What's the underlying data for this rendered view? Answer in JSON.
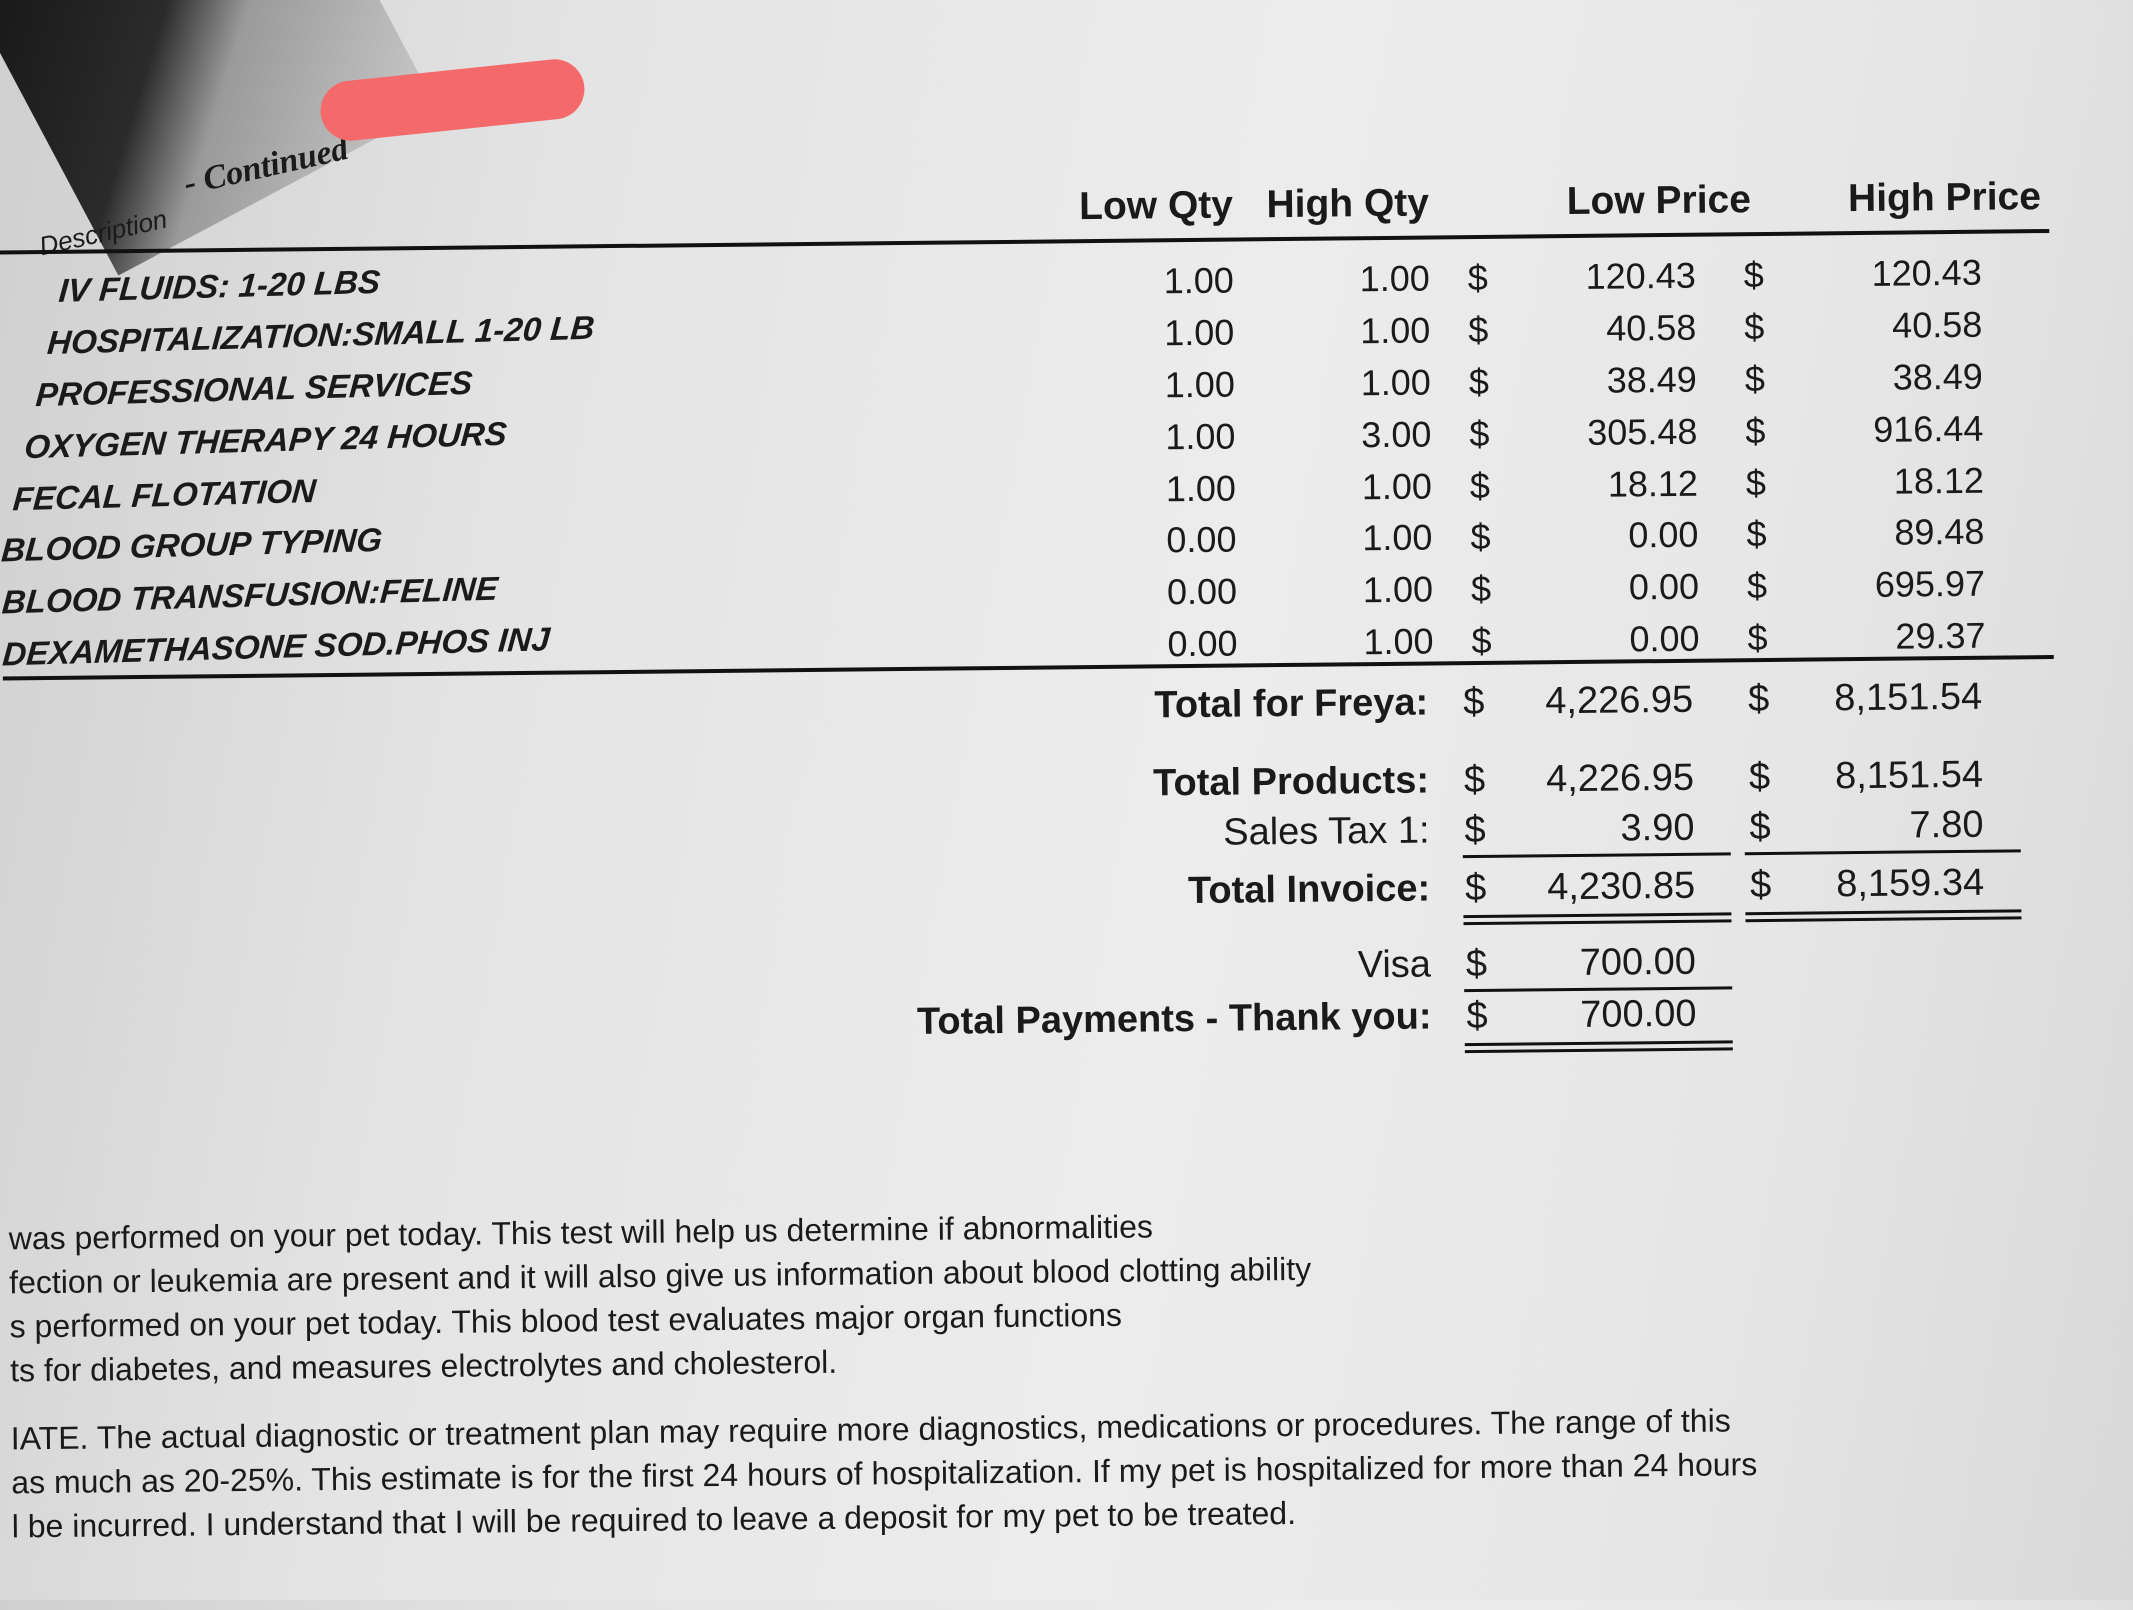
{
  "header": {
    "continued": "- Continued",
    "description": "Description"
  },
  "columns": {
    "low_qty": "Low Qty",
    "high_qty": "High Qty",
    "low_price": "Low Price",
    "high_price": "High Price"
  },
  "currency": "$",
  "items": [
    {
      "desc": "IV FLUIDS: 1-20 LBS",
      "low_qty": "1.00",
      "high_qty": "1.00",
      "low_price": "120.43",
      "high_price": "120.43"
    },
    {
      "desc": "HOSPITALIZATION:SMALL  1-20 LB",
      "low_qty": "1.00",
      "high_qty": "1.00",
      "low_price": "40.58",
      "high_price": "40.58"
    },
    {
      "desc": "PROFESSIONAL SERVICES",
      "low_qty": "1.00",
      "high_qty": "1.00",
      "low_price": "38.49",
      "high_price": "38.49"
    },
    {
      "desc": "OXYGEN THERAPY 24 HOURS",
      "low_qty": "1.00",
      "high_qty": "3.00",
      "low_price": "305.48",
      "high_price": "916.44"
    },
    {
      "desc": "FECAL FLOTATION",
      "low_qty": "1.00",
      "high_qty": "1.00",
      "low_price": "18.12",
      "high_price": "18.12"
    },
    {
      "desc": "BLOOD GROUP TYPING",
      "low_qty": "0.00",
      "high_qty": "1.00",
      "low_price": "0.00",
      "high_price": "89.48"
    },
    {
      "desc": "BLOOD TRANSFUSION:FELINE",
      "low_qty": "0.00",
      "high_qty": "1.00",
      "low_price": "0.00",
      "high_price": "695.97"
    },
    {
      "desc": "DEXAMETHASONE SOD.PHOS INJ",
      "low_qty": "0.00",
      "high_qty": "1.00",
      "low_price": "0.00",
      "high_price": "29.37"
    }
  ],
  "totals": {
    "freya": {
      "label": "Total for Freya:",
      "low": "4,226.95",
      "high": "8,151.54"
    },
    "products": {
      "label": "Total Products:",
      "low": "4,226.95",
      "high": "8,151.54"
    },
    "tax": {
      "label": "Sales Tax 1:",
      "low": "3.90",
      "high": "7.80"
    },
    "invoice": {
      "label": "Total Invoice:",
      "low": "4,230.85",
      "high": "8,159.34"
    },
    "visa": {
      "label": "Visa",
      "amount": "700.00"
    },
    "payments": {
      "label": "Total Payments - Thank you:",
      "amount": "700.00"
    }
  },
  "notes": [
    "was performed on your pet today.  This test will help us determine if abnormalities",
    "fection or leukemia are present and it will also give us information about blood clotting ability",
    "s performed on your pet today.  This blood test evaluates major organ functions",
    "ts for diabetes, and measures electrolytes and cholesterol.",
    "IATE. The actual diagnostic or treatment plan may require more diagnostics, medications or procedures. The range of this",
    " as much as 20-25%. This estimate is for the first 24 hours of hospitalization. If my pet is hospitalized for more than 24 hours",
    "l be incurred. I understand that I will be required to leave a deposit for my pet to be treated."
  ]
}
